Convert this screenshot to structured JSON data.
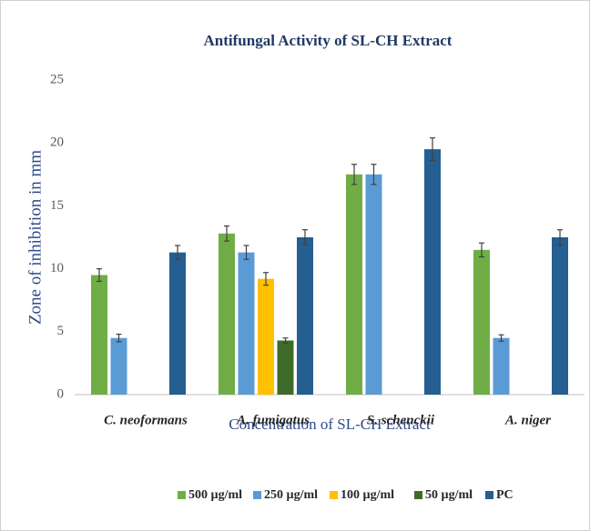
{
  "chart_data": {
    "type": "bar",
    "title": "Antifungal Activity of SL-CH Extract",
    "xlabel": "Concentration of SL-CH Extract",
    "ylabel": "Zone of inhibition in mm",
    "categories": [
      "C.  neoformans",
      "A. fumigatus",
      "S. schenckii",
      "A. niger"
    ],
    "series": [
      {
        "name": "500 µg/ml",
        "color": "#70ad47",
        "values": [
          9.5,
          12.8,
          17.5,
          11.5
        ],
        "errors": [
          0.5,
          0.6,
          0.8,
          0.55
        ]
      },
      {
        "name": "250 µg/ml",
        "color": "#5b9bd5",
        "values": [
          4.5,
          11.3,
          17.5,
          4.5
        ],
        "errors": [
          0.3,
          0.55,
          0.8,
          0.25
        ]
      },
      {
        "name": "100 µg/ml",
        "color": "#ffc000",
        "values": [
          null,
          9.2,
          null,
          null
        ],
        "errors": [
          null,
          0.5,
          null,
          null
        ]
      },
      {
        "name": "50 µg/ml",
        "color": "#3f6b2a",
        "values": [
          null,
          4.3,
          null,
          null
        ],
        "errors": [
          null,
          0.2,
          null,
          null
        ]
      },
      {
        "name": "PC",
        "color": "#255e91",
        "values": [
          11.3,
          12.5,
          19.5,
          12.5
        ],
        "errors": [
          0.55,
          0.6,
          0.9,
          0.6
        ]
      }
    ],
    "ylim": [
      0,
      25
    ],
    "yticks": [
      0,
      5,
      10,
      15,
      20,
      25
    ],
    "grid": false,
    "legend": "bottom"
  }
}
